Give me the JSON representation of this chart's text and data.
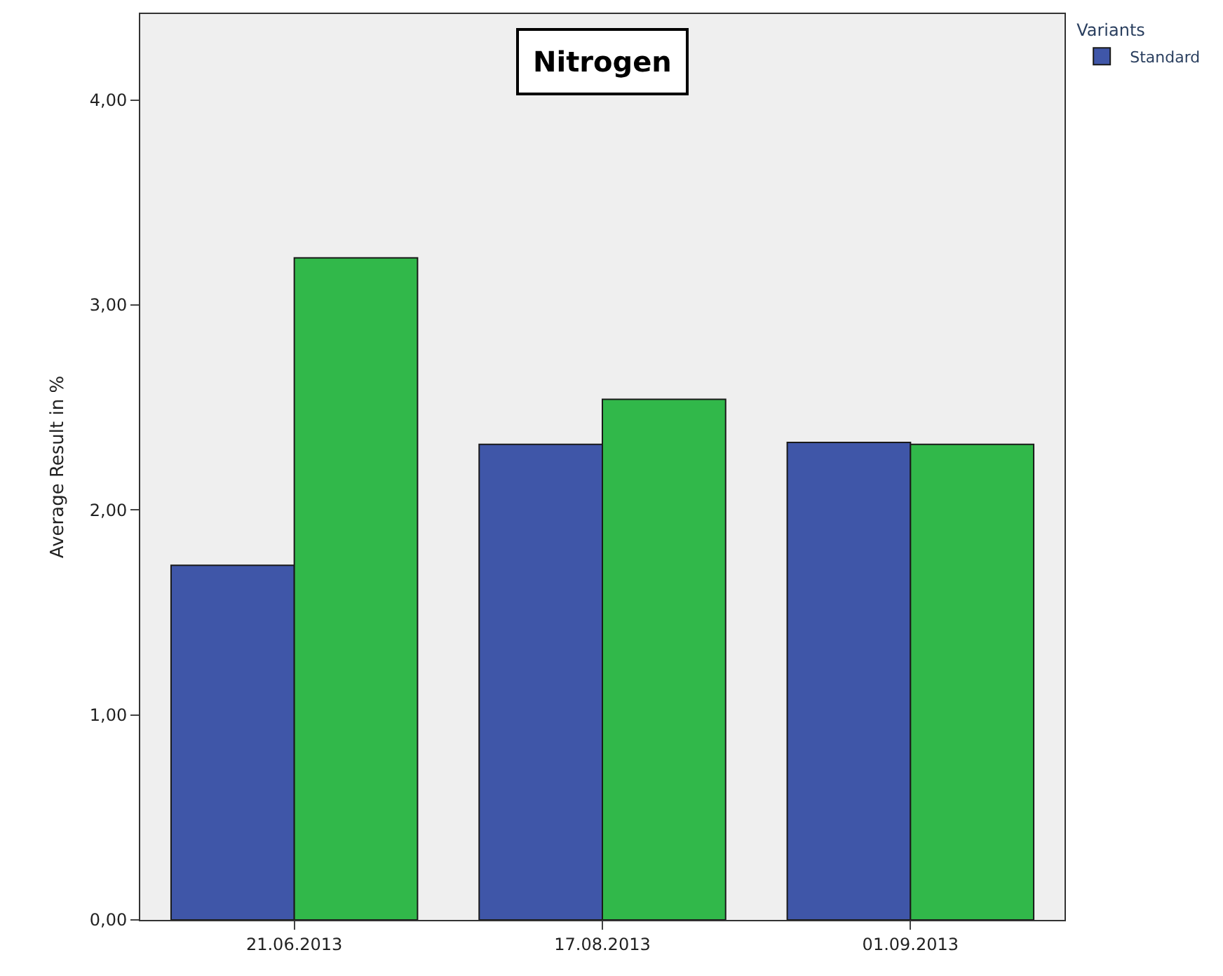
{
  "chart_data": {
    "type": "bar",
    "title": "Nitrogen",
    "ylabel": "Average Result in %",
    "legend_title": "Variants",
    "categories": [
      "21.06.2013",
      "17.08.2013",
      "01.09.2013"
    ],
    "series": [
      {
        "name": "Standard",
        "color": "#3f56a8",
        "values": [
          1.73,
          2.32,
          2.33
        ]
      },
      {
        "color": "#31b84a",
        "values": [
          3.23,
          2.54,
          2.32
        ]
      }
    ],
    "ylim": [
      0,
      4.42
    ],
    "yticks": [
      {
        "value": 0,
        "label": "0,00"
      },
      {
        "value": 1,
        "label": "1,00"
      },
      {
        "value": 2,
        "label": "2,00"
      },
      {
        "value": 3,
        "label": "3,00"
      },
      {
        "value": 4,
        "label": "4,00"
      }
    ],
    "grid": false,
    "legend": "top right"
  }
}
